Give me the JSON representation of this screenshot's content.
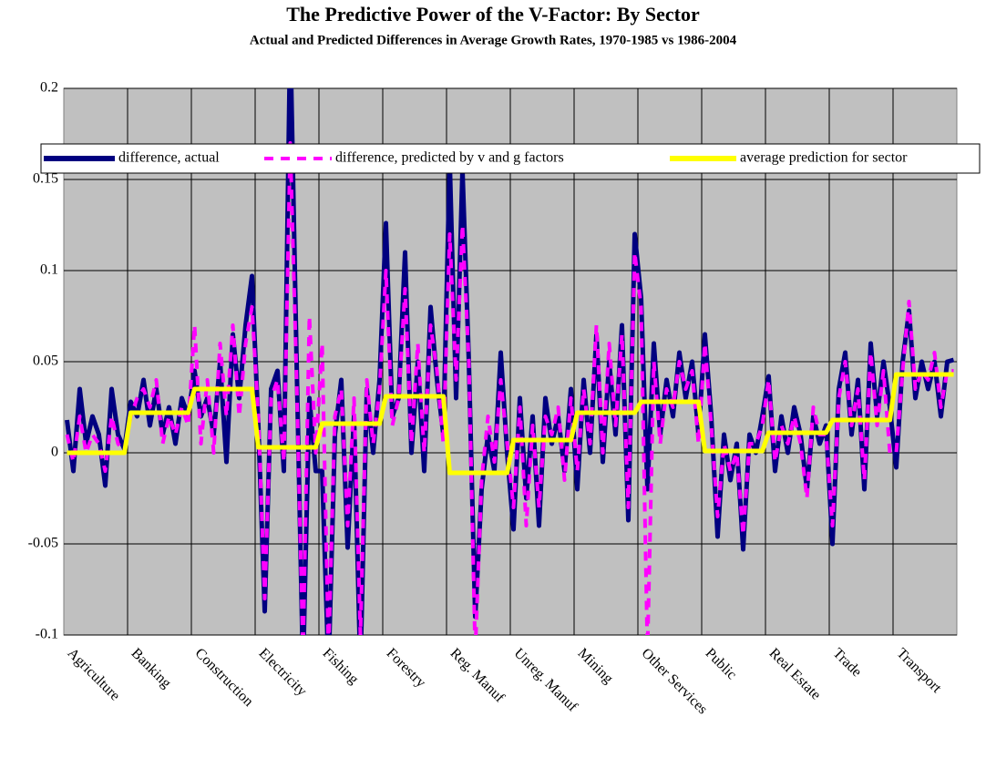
{
  "chart_data": {
    "type": "line",
    "title": "The Predictive Power of the V-Factor: By Sector",
    "subtitle": "Actual and Predicted Differences in Average Growth Rates, 1970-1985 vs 1986-2004",
    "categories": [
      "Agriculture",
      null,
      null,
      null,
      null,
      null,
      null,
      null,
      null,
      null,
      "Banking",
      null,
      null,
      null,
      null,
      null,
      null,
      null,
      null,
      null,
      "Construction",
      null,
      null,
      null,
      null,
      null,
      null,
      null,
      null,
      null,
      "Electricity",
      null,
      null,
      null,
      null,
      null,
      null,
      null,
      null,
      null,
      "Fishing",
      null,
      null,
      null,
      null,
      null,
      null,
      null,
      null,
      null,
      "Forestry",
      null,
      null,
      null,
      null,
      null,
      null,
      null,
      null,
      null,
      "Reg. Manuf",
      null,
      null,
      null,
      null,
      null,
      null,
      null,
      null,
      null,
      "Unreg. Manuf",
      null,
      null,
      null,
      null,
      null,
      null,
      null,
      null,
      null,
      "Mining",
      null,
      null,
      null,
      null,
      null,
      null,
      null,
      null,
      null,
      "Other Services",
      null,
      null,
      null,
      null,
      null,
      null,
      null,
      null,
      null,
      "Public",
      null,
      null,
      null,
      null,
      null,
      null,
      null,
      null,
      null,
      "Real Estate",
      null,
      null,
      null,
      null,
      null,
      null,
      null,
      null,
      null,
      "Trade",
      null,
      null,
      null,
      null,
      null,
      null,
      null,
      null,
      null,
      "Transport",
      null,
      null,
      null,
      null,
      null,
      null,
      null,
      null,
      null
    ],
    "series": [
      {
        "name": "difference, actual",
        "color": "#000080",
        "style": "solid",
        "values": [
          0.018,
          -0.01,
          0.035,
          0.005,
          0.02,
          0.01,
          -0.018,
          0.035,
          0.01,
          0.002,
          0.028,
          0.02,
          0.04,
          0.015,
          0.035,
          0.01,
          0.025,
          0.005,
          0.03,
          0.02,
          0.045,
          0.02,
          0.03,
          0.01,
          0.05,
          -0.005,
          0.065,
          0.03,
          0.07,
          0.097,
          0.015,
          -0.087,
          0.035,
          0.045,
          -0.01,
          0.23,
          0.05,
          -0.12,
          0.03,
          -0.01,
          -0.01,
          -0.12,
          0.01,
          0.04,
          -0.052,
          0.02,
          -0.12,
          0.035,
          0.0,
          0.04,
          0.126,
          0.02,
          0.03,
          0.11,
          0.0,
          0.05,
          -0.01,
          0.08,
          0.04,
          0.01,
          0.16,
          0.03,
          0.155,
          0.05,
          -0.09,
          -0.02,
          0.01,
          -0.01,
          0.055,
          0.0,
          -0.042,
          0.03,
          -0.025,
          0.02,
          -0.04,
          0.03,
          0.005,
          0.02,
          -0.01,
          0.035,
          -0.02,
          0.04,
          0.0,
          0.065,
          -0.005,
          0.05,
          0.01,
          0.07,
          -0.037,
          0.12,
          0.085,
          -0.02,
          0.06,
          0.01,
          0.04,
          0.02,
          0.055,
          0.03,
          0.05,
          0.01,
          0.065,
          0.02,
          -0.046,
          0.01,
          -0.015,
          0.005,
          -0.053,
          0.01,
          0.0,
          0.02,
          0.042,
          -0.01,
          0.02,
          0.0,
          0.025,
          0.01,
          -0.02,
          0.02,
          0.005,
          0.015,
          -0.05,
          0.035,
          0.055,
          0.01,
          0.04,
          -0.02,
          0.06,
          0.02,
          0.05,
          0.025,
          -0.008,
          0.05,
          0.078,
          0.03,
          0.05,
          0.035,
          0.05,
          0.02,
          0.05,
          0.051
        ]
      },
      {
        "name": "difference, predicted by v and g factors",
        "color": "#ff00ff",
        "style": "dashed",
        "values": [
          0.01,
          -0.005,
          0.02,
          0.0,
          0.01,
          0.005,
          -0.01,
          0.02,
          0.005,
          0.0,
          0.02,
          0.03,
          0.035,
          0.025,
          0.04,
          0.005,
          0.02,
          0.01,
          0.025,
          0.015,
          0.07,
          0.005,
          0.04,
          0.0,
          0.06,
          0.02,
          0.07,
          0.02,
          0.06,
          0.08,
          0.02,
          -0.08,
          0.03,
          0.04,
          -0.005,
          0.17,
          0.04,
          -0.11,
          0.075,
          0.0,
          0.06,
          -0.11,
          0.02,
          0.035,
          -0.04,
          0.03,
          -0.1,
          0.04,
          0.005,
          0.035,
          0.1,
          0.015,
          0.03,
          0.09,
          0.005,
          0.06,
          0.0,
          0.07,
          0.045,
          0.005,
          0.12,
          0.04,
          0.125,
          0.05,
          -0.11,
          -0.015,
          0.02,
          -0.005,
          0.04,
          0.005,
          -0.03,
          0.025,
          -0.04,
          0.015,
          -0.03,
          0.02,
          0.01,
          0.025,
          -0.015,
          0.03,
          -0.01,
          0.035,
          0.005,
          0.07,
          0.0,
          0.06,
          0.015,
          0.065,
          -0.03,
          0.11,
          0.08,
          -0.11,
          0.05,
          0.005,
          0.035,
          0.025,
          0.05,
          0.035,
          0.045,
          0.005,
          0.06,
          0.015,
          -0.035,
          0.005,
          -0.01,
          0.0,
          -0.045,
          0.005,
          0.005,
          0.015,
          0.04,
          -0.005,
          0.015,
          0.005,
          0.02,
          0.005,
          -0.025,
          0.025,
          0.01,
          0.01,
          -0.04,
          0.03,
          0.05,
          0.015,
          0.035,
          -0.015,
          0.055,
          0.015,
          0.045,
          0.0,
          0.0,
          0.045,
          0.083,
          0.035,
          0.045,
          0.04,
          0.055,
          0.025,
          0.045,
          0.045
        ]
      },
      {
        "name": "average prediction for sector",
        "color": "#ffff00",
        "style": "solid",
        "values": [
          0,
          0,
          0,
          0,
          0,
          0,
          0,
          0,
          0,
          0,
          0.022,
          0.022,
          0.022,
          0.022,
          0.022,
          0.022,
          0.022,
          0.022,
          0.022,
          0.022,
          0.035,
          0.035,
          0.035,
          0.035,
          0.035,
          0.035,
          0.035,
          0.035,
          0.035,
          0.035,
          0.003,
          0.003,
          0.003,
          0.003,
          0.003,
          0.003,
          0.003,
          0.003,
          0.003,
          0.003,
          0.016,
          0.016,
          0.016,
          0.016,
          0.016,
          0.016,
          0.016,
          0.016,
          0.016,
          0.016,
          0.031,
          0.031,
          0.031,
          0.031,
          0.031,
          0.031,
          0.031,
          0.031,
          0.031,
          0.031,
          -0.011,
          -0.011,
          -0.011,
          -0.011,
          -0.011,
          -0.011,
          -0.011,
          -0.011,
          -0.011,
          -0.011,
          0.007,
          0.007,
          0.007,
          0.007,
          0.007,
          0.007,
          0.007,
          0.007,
          0.007,
          0.007,
          0.022,
          0.022,
          0.022,
          0.022,
          0.022,
          0.022,
          0.022,
          0.022,
          0.022,
          0.022,
          0.028,
          0.028,
          0.028,
          0.028,
          0.028,
          0.028,
          0.028,
          0.028,
          0.028,
          0.028,
          0.001,
          0.001,
          0.001,
          0.001,
          0.001,
          0.001,
          0.001,
          0.001,
          0.001,
          0.001,
          0.011,
          0.011,
          0.011,
          0.011,
          0.011,
          0.011,
          0.011,
          0.011,
          0.011,
          0.011,
          0.018,
          0.018,
          0.018,
          0.018,
          0.018,
          0.018,
          0.018,
          0.018,
          0.018,
          0.018,
          0.043,
          0.043,
          0.043,
          0.043,
          0.043,
          0.043,
          0.043,
          0.043,
          0.043,
          0.043
        ]
      }
    ],
    "ylim": [
      -0.1,
      0.2
    ],
    "yticks": [
      -0.1,
      -0.05,
      0,
      0.05,
      0.1,
      0.15,
      0.2
    ],
    "grid": true,
    "legend": "top"
  }
}
